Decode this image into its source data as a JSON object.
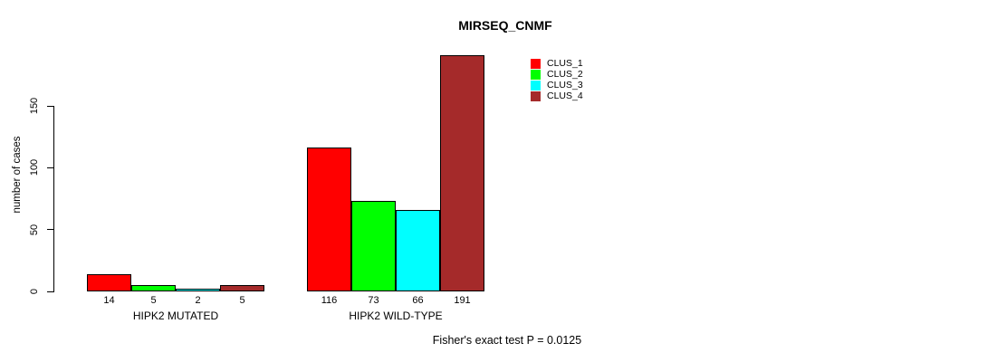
{
  "chart_data": {
    "type": "bar",
    "title": "MIRSEQ_CNMF",
    "ylabel": "number of cases",
    "ylim": [
      0,
      150
    ],
    "yticks": [
      0,
      50,
      100,
      150
    ],
    "grid": false,
    "legend_position": "top-right",
    "categories": [
      "CLUS_1",
      "CLUS_2",
      "CLUS_3",
      "CLUS_4"
    ],
    "colors": [
      "#FF0000",
      "#00FF00",
      "#00FFFF",
      "#A52A2A"
    ],
    "groups": [
      {
        "label": "HIPK2 MUTATED",
        "values": [
          14,
          5,
          2,
          5
        ]
      },
      {
        "label": "HIPK2 WILD-TYPE",
        "values": [
          116,
          73,
          66,
          191
        ]
      }
    ],
    "bar_value_labels": [
      [
        "14",
        "5",
        "2",
        "5"
      ],
      [
        "116",
        "73",
        "66",
        "191"
      ]
    ],
    "annotation": "Fisher's exact test P = 0.0125"
  }
}
